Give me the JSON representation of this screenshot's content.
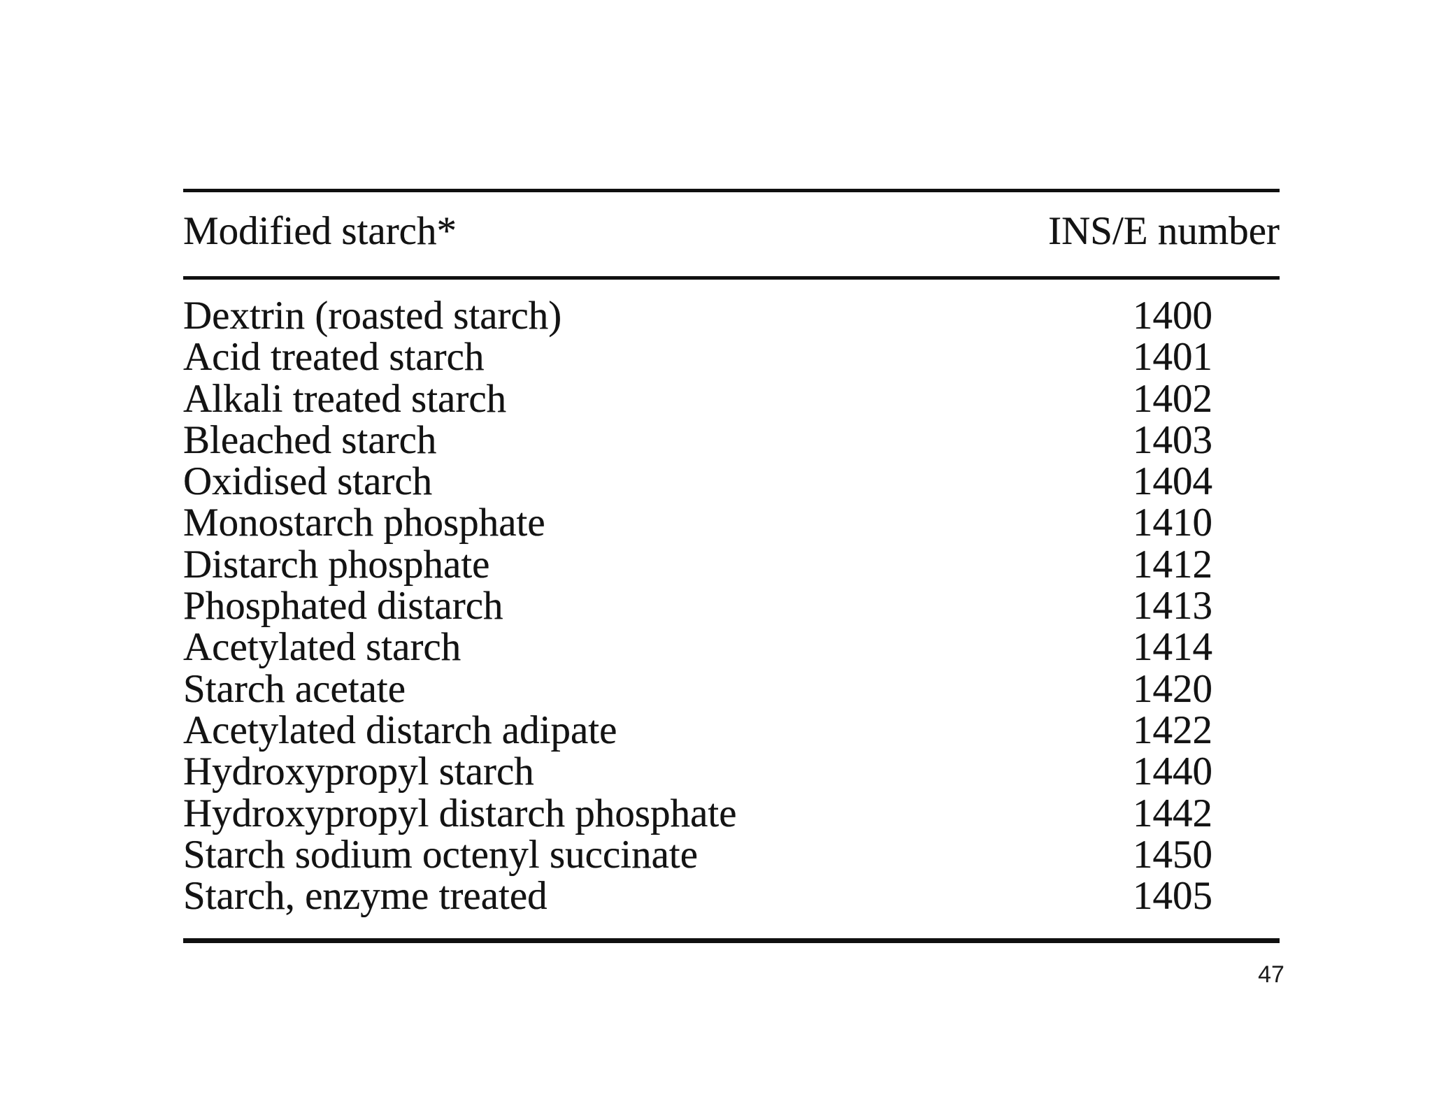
{
  "page": {
    "page_number": "47"
  },
  "table": {
    "columns": [
      "Modified starch*",
      "INS/E number"
    ],
    "rows": [
      {
        "name": "Dextrin (roasted starch)",
        "ins": "1400"
      },
      {
        "name": "Acid treated starch",
        "ins": "1401"
      },
      {
        "name": "Alkali treated starch",
        "ins": "1402"
      },
      {
        "name": "Bleached starch",
        "ins": "1403"
      },
      {
        "name": "Oxidised starch",
        "ins": "1404"
      },
      {
        "name": "Monostarch phosphate",
        "ins": "1410"
      },
      {
        "name": "Distarch phosphate",
        "ins": "1412"
      },
      {
        "name": "Phosphated distarch",
        "ins": "1413"
      },
      {
        "name": "Acetylated starch",
        "ins": "1414"
      },
      {
        "name": "Starch acetate",
        "ins": "1420"
      },
      {
        "name": "Acetylated distarch adipate",
        "ins": "1422"
      },
      {
        "name": "Hydroxypropyl starch",
        "ins": "1440"
      },
      {
        "name": "Hydroxypropyl distarch phosphate",
        "ins": "1442"
      },
      {
        "name": "Starch sodium octenyl succinate",
        "ins": "1450"
      },
      {
        "name": "Starch, enzyme treated",
        "ins": "1405"
      }
    ],
    "text_color": "#131313",
    "rule_color": "#101010",
    "background_color": "#ffffff"
  }
}
